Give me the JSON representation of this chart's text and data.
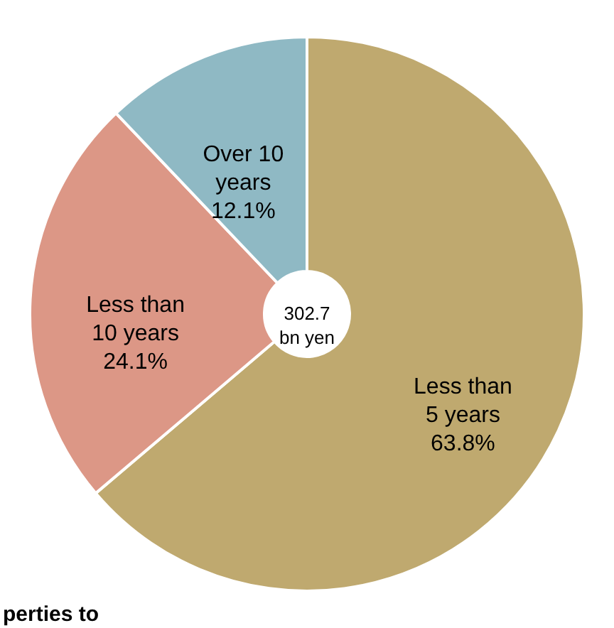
{
  "chart_data": {
    "type": "donut",
    "categories": [
      "Less than\n5 years",
      "Less than\n10 years",
      "Over 10\nyears"
    ],
    "values": [
      63.8,
      24.1,
      12.1
    ],
    "colors": [
      "#bfa96f",
      "#dc9786",
      "#8fb9c4"
    ],
    "value_labels": [
      "63.8%",
      "24.1%",
      "12.1%"
    ],
    "annotations": [
      "302.7\nbn yen",
      "perties to"
    ]
  }
}
